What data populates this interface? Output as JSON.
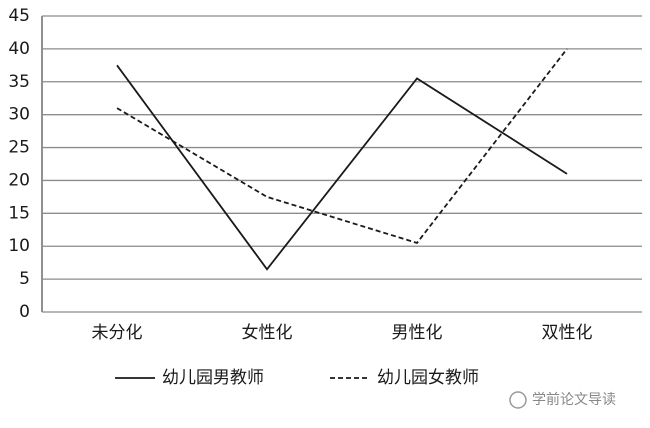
{
  "chart_data": {
    "type": "line",
    "categories": [
      "未分化",
      "女性化",
      "男性化",
      "双性化"
    ],
    "series": [
      {
        "name": "幼儿园男教师",
        "color": "#1a1a1a",
        "dash": "solid",
        "values": [
          37.5,
          6.5,
          35.5,
          21
        ]
      },
      {
        "name": "幼儿园女教师",
        "color": "#1a1a1a",
        "dash": "dashed",
        "values": [
          31,
          17.5,
          10.5,
          40
        ]
      }
    ],
    "ylim": [
      0,
      45
    ],
    "yticks": [
      0,
      5,
      10,
      15,
      20,
      25,
      30,
      35,
      40,
      45
    ],
    "grid": true,
    "legend": "bottom"
  },
  "watermark": "学前论文导读"
}
